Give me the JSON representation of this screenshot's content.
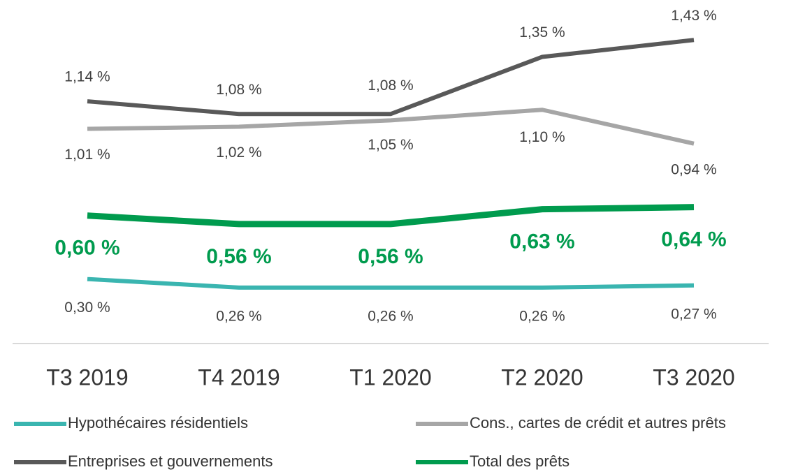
{
  "chart_data": {
    "type": "line",
    "categories": [
      "T3 2019",
      "T4 2019",
      "T1 2020",
      "T2 2020",
      "T3 2020"
    ],
    "ylim": [
      0.2,
      1.5
    ],
    "series": [
      {
        "name": "Hypothécaires résidentiels",
        "color": "#3ab5b0",
        "values": [
          0.3,
          0.26,
          0.26,
          0.26,
          0.27
        ],
        "value_labels": [
          "0,30 %",
          "0,26 %",
          "0,26 %",
          "0,26 %",
          "0,27 %"
        ]
      },
      {
        "name": "Cons., cartes de crédit et autres prêts",
        "color": "#a6a6a6",
        "values": [
          1.01,
          1.02,
          1.05,
          1.1,
          0.94
        ],
        "value_labels": [
          "1,01 %",
          "1,02 %",
          "1,05 %",
          "1,10 %",
          "0,94 %"
        ]
      },
      {
        "name": "Entreprises et gouvernements",
        "color": "#595959",
        "values": [
          1.14,
          1.08,
          1.08,
          1.35,
          1.43
        ],
        "value_labels": [
          "1,14 %",
          "1,08 %",
          "1,08 %",
          "1,35 %",
          "1,43 %"
        ]
      },
      {
        "name": "Total des prêts",
        "color": "#009b4e",
        "values": [
          0.6,
          0.56,
          0.56,
          0.63,
          0.64
        ],
        "value_labels": [
          "0,60 %",
          "0,56 %",
          "0,56 %",
          "0,63 %",
          "0,64 %"
        ]
      }
    ]
  }
}
